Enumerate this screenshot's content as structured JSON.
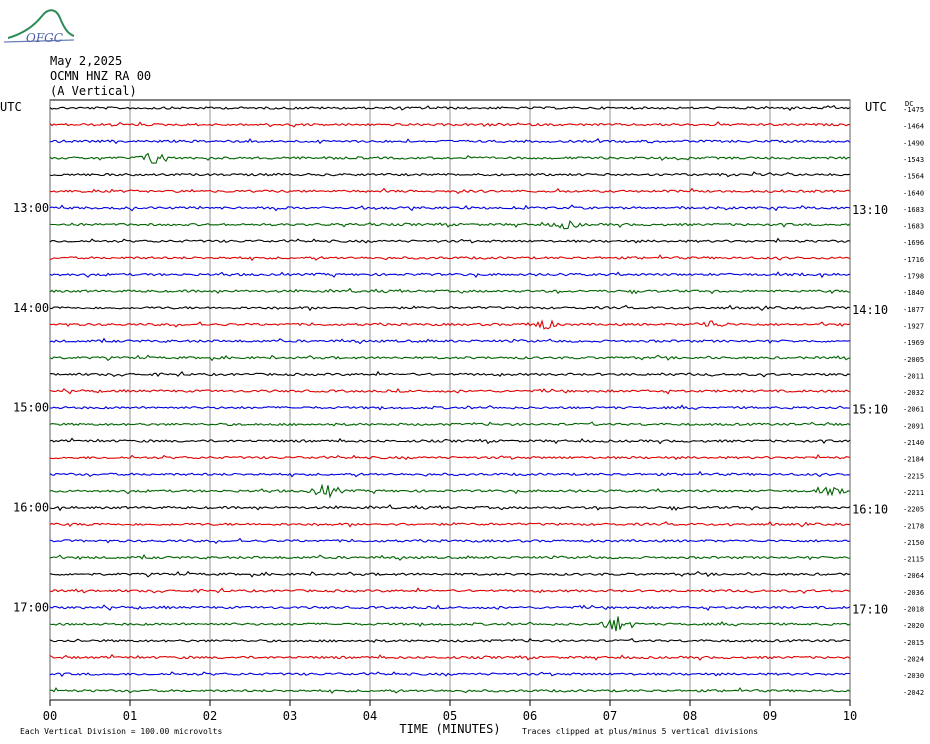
{
  "header": {
    "logo_text": "OFGC",
    "date": "May 2,2025",
    "station": "OCMN HNZ RA 00",
    "component": "(A Vertical)"
  },
  "chart_data": {
    "type": "line",
    "title": "May 2,2025",
    "xlabel": "TIME (MINUTES)",
    "ylabel": "UTC",
    "right_label": "UTC",
    "dc_label": "DC",
    "x_ticks": [
      "00",
      "01",
      "02",
      "03",
      "04",
      "05",
      "06",
      "07",
      "08",
      "09",
      "10"
    ],
    "xlim": [
      0,
      10
    ],
    "trace_count": 36,
    "trace_colors": [
      "#000000",
      "#e00000",
      "#0000e0",
      "#006400"
    ],
    "left_hour_labels": [
      {
        "row": 6,
        "text": "13:00"
      },
      {
        "row": 12,
        "text": "14:00"
      },
      {
        "row": 18,
        "text": "15:00"
      },
      {
        "row": 24,
        "text": "16:00"
      },
      {
        "row": 30,
        "text": "17:00"
      }
    ],
    "right_hour_labels": [
      {
        "row": 6,
        "text": "13:10"
      },
      {
        "row": 12,
        "text": "14:10"
      },
      {
        "row": 18,
        "text": "15:10"
      },
      {
        "row": 24,
        "text": "16:10"
      },
      {
        "row": 30,
        "text": "17:10"
      }
    ],
    "dc_offsets": [
      "-1475",
      "-1464",
      "-1490",
      "-1543",
      "-1564",
      "-1640",
      "-1683",
      "-1683",
      "-1696",
      "-1716",
      "-1798",
      "-1840",
      "-1877",
      "-1927",
      "-1969",
      "-2005",
      "-2011",
      "-2032",
      "-2061",
      "-2091",
      "-2140",
      "-2184",
      "-2215",
      "-2211",
      "-2205",
      "-2178",
      "-2150",
      "-2115",
      "-2064",
      "-2036",
      "-2018",
      "-2020",
      "-2015",
      "-2024",
      "-2030",
      "-2042"
    ],
    "events": [
      {
        "row": 3,
        "minute": 1.3,
        "amp": 1.0
      },
      {
        "row": 7,
        "minute": 6.45,
        "amp": 0.6
      },
      {
        "row": 13,
        "minute": 6.15,
        "amp": 0.8
      },
      {
        "row": 13,
        "minute": 8.25,
        "amp": 0.6
      },
      {
        "row": 23,
        "minute": 3.45,
        "amp": 1.0
      },
      {
        "row": 23,
        "minute": 9.75,
        "amp": 0.5
      },
      {
        "row": 31,
        "minute": 7.1,
        "amp": 1.3
      }
    ],
    "footer_left": "Each Vertical Division =  100.00 microvolts",
    "footer_right": "Traces clipped at plus/minus 5 vertical divisions"
  }
}
